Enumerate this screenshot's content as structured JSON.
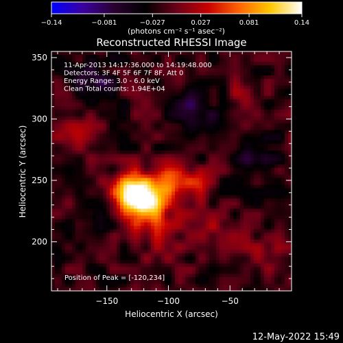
{
  "chart_data": {
    "type": "heatmap",
    "title": "Reconstructed RHESSI Image",
    "xlabel": "Heliocentric X (arcsec)",
    "ylabel": "Heliocentric Y (arcsec)",
    "xlim": [
      -195,
      0
    ],
    "ylim": [
      160,
      355
    ],
    "xticks": [
      -150,
      -100,
      -50
    ],
    "xtick_labels": [
      "−150",
      "−100",
      "−50"
    ],
    "yticks": [
      200,
      250,
      300,
      350
    ],
    "ytick_labels": [
      "200",
      "250",
      "300",
      "350"
    ],
    "colorbar": {
      "range": [
        -0.14,
        0.14
      ],
      "ticks": [
        -0.14,
        -0.081,
        -0.027,
        0.027,
        0.081,
        0.14
      ],
      "tick_labels": [
        "−0.14",
        "−0.081",
        "−0.027",
        "0.027",
        "0.081",
        "0.14"
      ],
      "unit_label": "(photons cm⁻² s⁻¹ asec⁻²)",
      "colors": [
        "#0000ff",
        "#3a00a0",
        "#2a0030",
        "#000000",
        "#6a0018",
        "#c80000",
        "#ff6400",
        "#ffc800",
        "#ffffff"
      ]
    },
    "annotations": [
      "11-Apr-2013 14:17:36.000 to 14:19:48.000",
      "Detectors: 3F 4F 5F 6F 7F 8F, Att 0",
      "Energy Range: 3.0 - 6.0 keV",
      "Clean     Total counts: 1.94E+04"
    ],
    "peak_label": "Position of Peak = [-120,234]",
    "peak": [
      -120,
      234
    ],
    "sources": [
      {
        "x": -120,
        "y": 234,
        "sigma": 11,
        "amp": 0.14
      },
      {
        "x": -132,
        "y": 242,
        "sigma": 10,
        "amp": 0.11
      },
      {
        "x": -100,
        "y": 250,
        "sigma": 9,
        "amp": 0.085
      },
      {
        "x": -80,
        "y": 247,
        "sigma": 9,
        "amp": 0.06
      },
      {
        "x": -112,
        "y": 217,
        "sigma": 18,
        "amp": 0.045
      },
      {
        "x": -60,
        "y": 205,
        "sigma": 12,
        "amp": 0.03
      },
      {
        "x": -20,
        "y": 190,
        "sigma": 12,
        "amp": 0.035
      },
      {
        "x": -175,
        "y": 290,
        "sigma": 10,
        "amp": 0.035
      },
      {
        "x": -40,
        "y": 320,
        "sigma": 10,
        "amp": 0.025
      },
      {
        "x": -160,
        "y": 330,
        "sigma": 12,
        "amp": -0.05
      },
      {
        "x": -80,
        "y": 305,
        "sigma": 14,
        "amp": -0.05
      },
      {
        "x": -30,
        "y": 270,
        "sigma": 12,
        "amp": -0.045
      },
      {
        "x": -160,
        "y": 210,
        "sigma": 10,
        "amp": -0.035
      }
    ]
  },
  "timestamp": "12-May-2022 15:49"
}
